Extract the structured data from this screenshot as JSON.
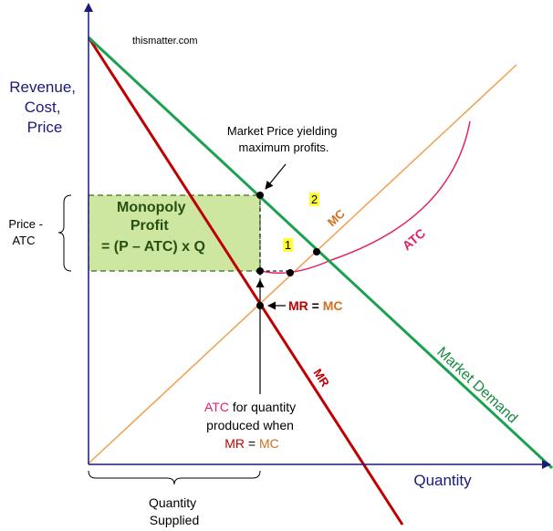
{
  "watermark": "thismatter.com",
  "y_axis_label": [
    "Revenue,",
    "Cost,",
    "Price"
  ],
  "x_axis_label": "Quantity",
  "price_atc_label": [
    "Price -",
    "ATC"
  ],
  "profit_box": {
    "line1": "Monopoly",
    "line2": "Profit",
    "line3": "= (P – ATC) x Q"
  },
  "market_price_note": [
    "Market Price yielding",
    "maximum profits."
  ],
  "curve_labels": {
    "mc": "MC",
    "atc": "ATC",
    "mr": "MR",
    "demand": "Market Demand"
  },
  "markers": {
    "one": "1",
    "two": "2"
  },
  "mr_eq_mc": {
    "mr": "MR",
    "eq": " = ",
    "mc": "MC"
  },
  "atc_note": {
    "line1_atc": "ATC",
    "line1_rest": " for quantity",
    "line2": "produced when",
    "line3_mr": "MR",
    "line3_eq": " = ",
    "line3_mc": "MC"
  },
  "quantity_supplied": [
    "Quantity",
    "Supplied"
  ],
  "colors": {
    "axis": "#1a1a7a",
    "demand": "#1aa150",
    "mr": "#c00000",
    "mc": "#f0a050",
    "mc_label": "#d07020",
    "atc": "#e0206a",
    "profit_fill": "#cde7a0",
    "profit_stroke": "#3e6b1f",
    "profit_text": "#274e13",
    "marker_bg": "#ffff33"
  }
}
